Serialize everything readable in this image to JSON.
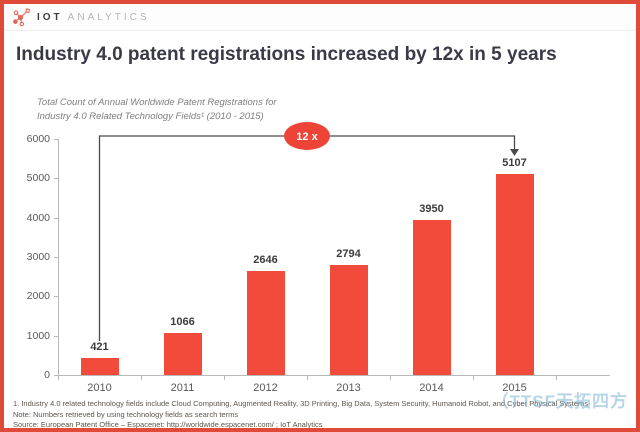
{
  "header": {
    "brand_bold": "IOT",
    "brand_light": "ANALYTICS"
  },
  "title": "Industry 4.0 patent registrations increased by 12x in 5 years",
  "chart_data": {
    "type": "bar",
    "title_line1": "Total Count of Annual Worldwide Patent Registrations for",
    "title_line2": "Industry 4.0 Related Technology Fields¹ (2010 - 2015)",
    "categories": [
      "2010",
      "2011",
      "2012",
      "2013",
      "2014",
      "2015"
    ],
    "values": [
      421,
      1066,
      2646,
      2794,
      3950,
      5107
    ],
    "ylim": [
      0,
      6000
    ],
    "yticks": [
      0,
      1000,
      2000,
      3000,
      4000,
      5000,
      6000
    ],
    "grid": false,
    "legend": "none",
    "bar_color": "#f24a3b",
    "annotation": {
      "label": "12 x",
      "badge_color": "#ee4337",
      "from_category": "2010",
      "to_category": "2015"
    }
  },
  "footnotes": {
    "line1": "1.  Industry 4.0 related technology fields include Cloud Computing, Augmented Reality, 3D Printing, Big Data, System Security, Humanoid Robot, and Cyber Physical Systems",
    "line2": "Note: Numbers retrieved by using technology fields as search terms",
    "line3": "Source: European Patent Office – Espacenet: http://worldwide.espacenet.com/ ; IoT Analytics"
  },
  "watermark": "（TTSF天拓四方"
}
